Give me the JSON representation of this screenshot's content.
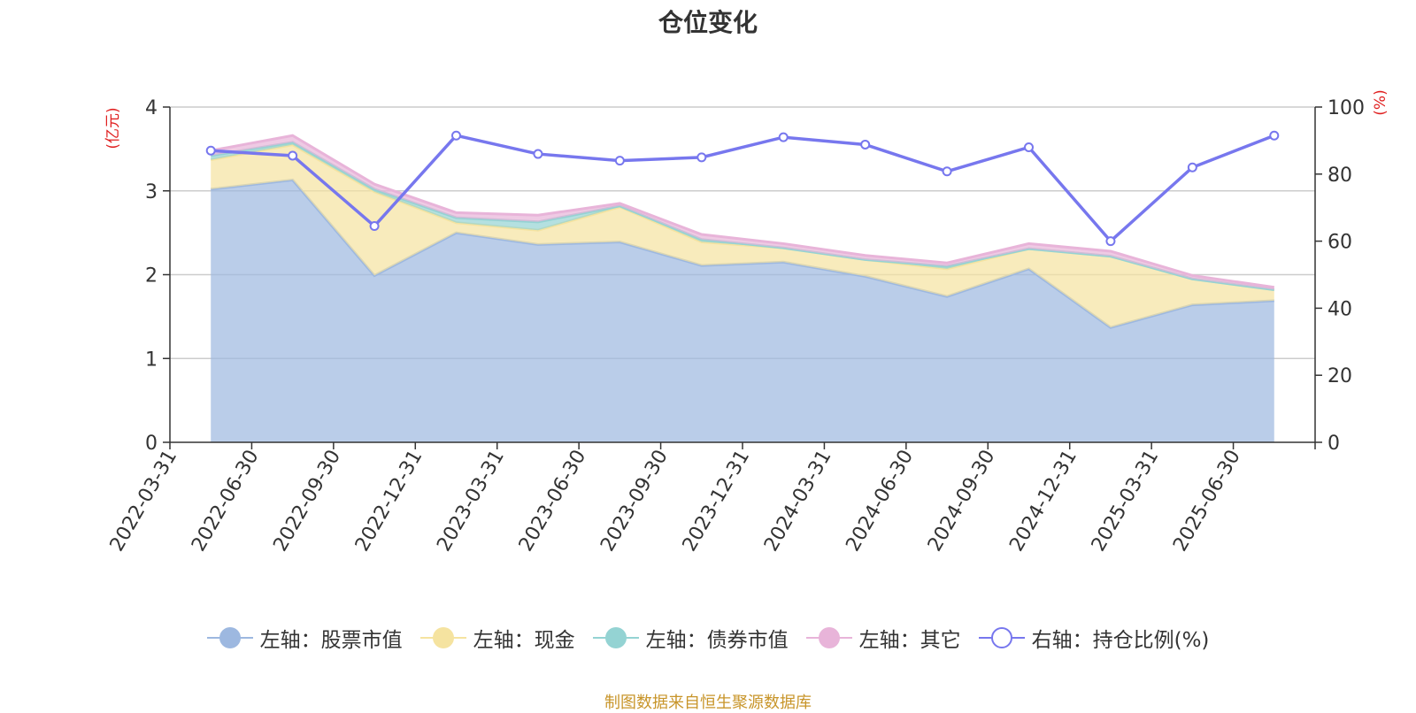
{
  "chart_data": {
    "type": "area",
    "title": "仓位变化",
    "left_axis_label": "(亿元)",
    "right_axis_label": "(%)",
    "categories": [
      "2022-03-31",
      "2022-06-30",
      "2022-09-30",
      "2022-12-31",
      "2023-03-31",
      "2023-06-30",
      "2023-09-30",
      "2023-12-31",
      "2024-03-31",
      "2024-06-30",
      "2024-09-30",
      "2024-12-31",
      "2025-03-31",
      "2025-06-30"
    ],
    "left_ylim": [
      0,
      4
    ],
    "left_yticks": [
      "0",
      "1",
      "2",
      "3",
      "4"
    ],
    "right_ylim": [
      0,
      100
    ],
    "right_yticks": [
      "0",
      "20",
      "40",
      "60",
      "80",
      "100"
    ],
    "grid": true,
    "legend_position": "bottom",
    "series": [
      {
        "name": "左轴：股票市值",
        "axis": "left",
        "stacked": true,
        "color": "#9db8e0",
        "values": [
          3.02,
          3.13,
          1.99,
          2.5,
          2.36,
          2.39,
          2.11,
          2.15,
          1.98,
          1.74,
          2.07,
          1.37,
          1.64,
          1.69
        ]
      },
      {
        "name": "左轴：现金",
        "axis": "left",
        "stacked": true,
        "color": "#f5e3a0",
        "values": [
          0.35,
          0.42,
          1.0,
          0.12,
          0.17,
          0.42,
          0.28,
          0.17,
          0.2,
          0.33,
          0.24,
          0.85,
          0.31,
          0.13
        ]
      },
      {
        "name": "左轴：债券市值",
        "axis": "left",
        "stacked": true,
        "color": "#94d3d3",
        "values": [
          0.05,
          0.03,
          0.03,
          0.06,
          0.1,
          0.01,
          0.03,
          0.0,
          0.0,
          0.03,
          0.0,
          0.0,
          0.0,
          0.0
        ]
      },
      {
        "name": "左轴：其它",
        "axis": "left",
        "stacked": true,
        "color": "#e8b4d9",
        "values": [
          0.06,
          0.08,
          0.06,
          0.06,
          0.08,
          0.03,
          0.06,
          0.05,
          0.05,
          0.04,
          0.06,
          0.06,
          0.04,
          0.03
        ]
      },
      {
        "name": "右轴：持仓比例(%)",
        "axis": "right",
        "stacked": false,
        "color": "#7777ee",
        "values": [
          87.0,
          85.5,
          64.5,
          91.5,
          86.0,
          84.0,
          85.0,
          91.0,
          88.8,
          80.8,
          88.0,
          60.0,
          82.0,
          91.5
        ]
      }
    ]
  },
  "source_note": "制图数据来自恒生聚源数据库"
}
